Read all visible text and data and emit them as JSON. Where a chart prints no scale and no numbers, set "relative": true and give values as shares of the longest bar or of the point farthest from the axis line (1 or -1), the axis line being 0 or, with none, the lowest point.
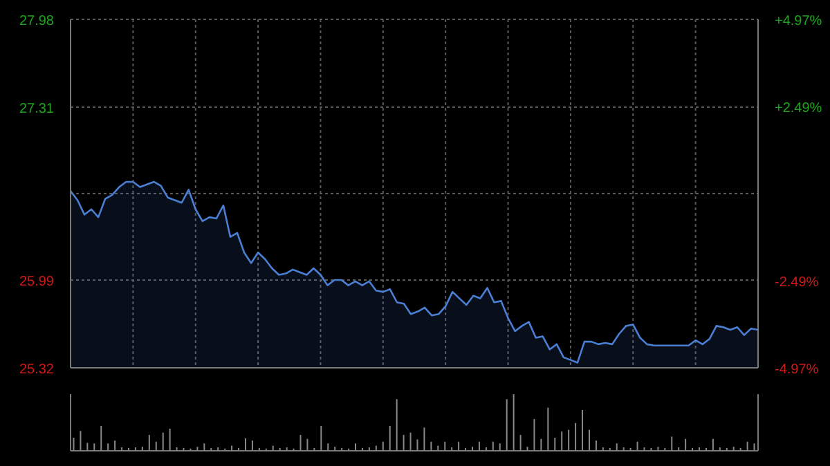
{
  "chart_data": [
    {
      "type": "area",
      "categories": [
        null,
        null,
        null,
        null,
        null,
        null,
        null,
        null,
        null,
        null,
        null,
        null,
        null,
        null,
        null,
        null,
        null,
        null,
        null,
        null,
        null,
        null,
        null,
        null,
        null,
        null,
        null,
        null,
        null,
        null,
        null,
        null,
        null,
        null,
        null,
        null,
        null,
        null,
        null,
        null,
        null,
        null,
        null,
        null,
        null,
        null,
        null,
        null,
        null,
        null,
        null,
        null,
        null,
        null,
        null,
        null,
        null,
        null,
        null,
        null,
        null,
        null,
        null,
        null,
        null,
        null,
        null,
        null,
        null,
        null,
        null,
        null,
        null,
        null,
        null,
        null,
        null,
        null,
        null,
        null,
        null,
        null,
        null,
        null,
        null,
        null,
        null,
        null,
        null,
        null,
        null,
        null,
        null,
        null,
        null,
        null,
        null,
        null,
        null,
        null
      ],
      "series": [
        {
          "color": "#4a7fd4",
          "values": [
            26.67,
            26.6,
            26.49,
            26.53,
            26.47,
            26.61,
            26.64,
            26.7,
            26.74,
            26.74,
            26.7,
            26.72,
            26.74,
            26.71,
            26.62,
            26.6,
            26.58,
            26.68,
            26.53,
            26.44,
            26.47,
            26.46,
            26.56,
            26.32,
            26.35,
            26.2,
            26.12,
            26.2,
            26.15,
            26.08,
            26.03,
            26.04,
            26.07,
            26.05,
            26.03,
            26.08,
            26.03,
            25.95,
            25.99,
            25.99,
            25.95,
            25.98,
            25.95,
            25.98,
            25.91,
            25.9,
            25.92,
            25.82,
            25.81,
            25.73,
            25.75,
            25.78,
            25.72,
            25.73,
            25.79,
            25.9,
            25.85,
            25.8,
            25.87,
            25.85,
            25.93,
            25.82,
            25.83,
            25.7,
            25.6,
            25.64,
            25.67,
            25.55,
            25.56,
            25.46,
            25.5,
            25.4,
            25.38,
            25.36,
            25.52,
            25.52,
            25.5,
            25.51,
            25.5,
            25.58,
            25.64,
            25.65,
            25.55,
            25.5,
            25.49,
            25.49,
            25.49,
            25.49,
            25.49,
            25.49,
            25.53,
            25.5,
            25.54,
            25.64,
            25.63,
            25.61,
            25.63,
            25.57,
            25.62,
            25.61
          ]
        }
      ],
      "ylim": [
        25.32,
        27.98
      ],
      "yticks": [
        25.32,
        25.99,
        {
          "value": 26.65,
          "label": null
        },
        27.31,
        27.98
      ],
      "y2lim": [
        -4.97,
        4.97
      ],
      "y2ticks": [
        {
          "value": -4.97,
          "label": "-4.97%"
        },
        {
          "value": -2.49,
          "label": "-2.49%"
        },
        {
          "value": 0,
          "label": null
        },
        {
          "value": 2.49,
          "label": "+2.49%"
        },
        {
          "value": 4.97,
          "label": "+4.97%"
        }
      ],
      "tick_labels": "y",
      "grid": true
    },
    {
      "type": "bar",
      "relative": true,
      "categories": [
        null,
        null,
        null,
        null,
        null,
        null,
        null,
        null,
        null,
        null,
        null,
        null,
        null,
        null,
        null,
        null,
        null,
        null,
        null,
        null,
        null,
        null,
        null,
        null,
        null,
        null,
        null,
        null,
        null,
        null,
        null,
        null,
        null,
        null,
        null,
        null,
        null,
        null,
        null,
        null,
        null,
        null,
        null,
        null,
        null,
        null,
        null,
        null,
        null,
        null,
        null,
        null,
        null,
        null,
        null,
        null,
        null,
        null,
        null,
        null,
        null,
        null,
        null,
        null,
        null,
        null,
        null,
        null,
        null,
        null,
        null,
        null,
        null,
        null,
        null,
        null,
        null,
        null,
        null,
        null,
        null,
        null,
        null,
        null,
        null,
        null,
        null,
        null,
        null,
        null,
        null,
        null,
        null,
        null,
        null,
        null,
        null,
        null,
        null,
        null
      ],
      "color": "#8a8a8a",
      "values": [
        0.23,
        0.35,
        0.14,
        0.13,
        0.44,
        0.13,
        0.18,
        0.06,
        0.05,
        0.06,
        0.07,
        0.28,
        0.16,
        0.32,
        0.39,
        0.06,
        0.05,
        0.04,
        0.07,
        0.13,
        0.05,
        0.06,
        0.04,
        0.09,
        0.05,
        0.22,
        0.18,
        0.05,
        0.04,
        0.09,
        0.05,
        0.06,
        0.04,
        0.28,
        0.21,
        0.05,
        0.44,
        0.13,
        0.07,
        0.05,
        0.04,
        0.13,
        0.05,
        0.06,
        0.09,
        0.16,
        0.44,
        0.91,
        0.28,
        0.32,
        0.2,
        0.41,
        0.16,
        0.09,
        0.16,
        0.06,
        0.16,
        0.05,
        0.07,
        0.16,
        0.06,
        0.16,
        0.13,
        0.91,
        1,
        0.28,
        0.07,
        0.56,
        0.21,
        0.76,
        0.23,
        0.34,
        0.37,
        0.49,
        0.72,
        0.37,
        0.18,
        0.06,
        0.05,
        0.13,
        0.06,
        0.05,
        0.16,
        0.06,
        0.05,
        0.07,
        0.05,
        0.25,
        0.06,
        0.21,
        0.05,
        0.06,
        0.05,
        0.21,
        0.06,
        0.05,
        0.07,
        0.05,
        0.16,
        0.13
      ],
      "tick_labels": false,
      "grid": false
    }
  ]
}
